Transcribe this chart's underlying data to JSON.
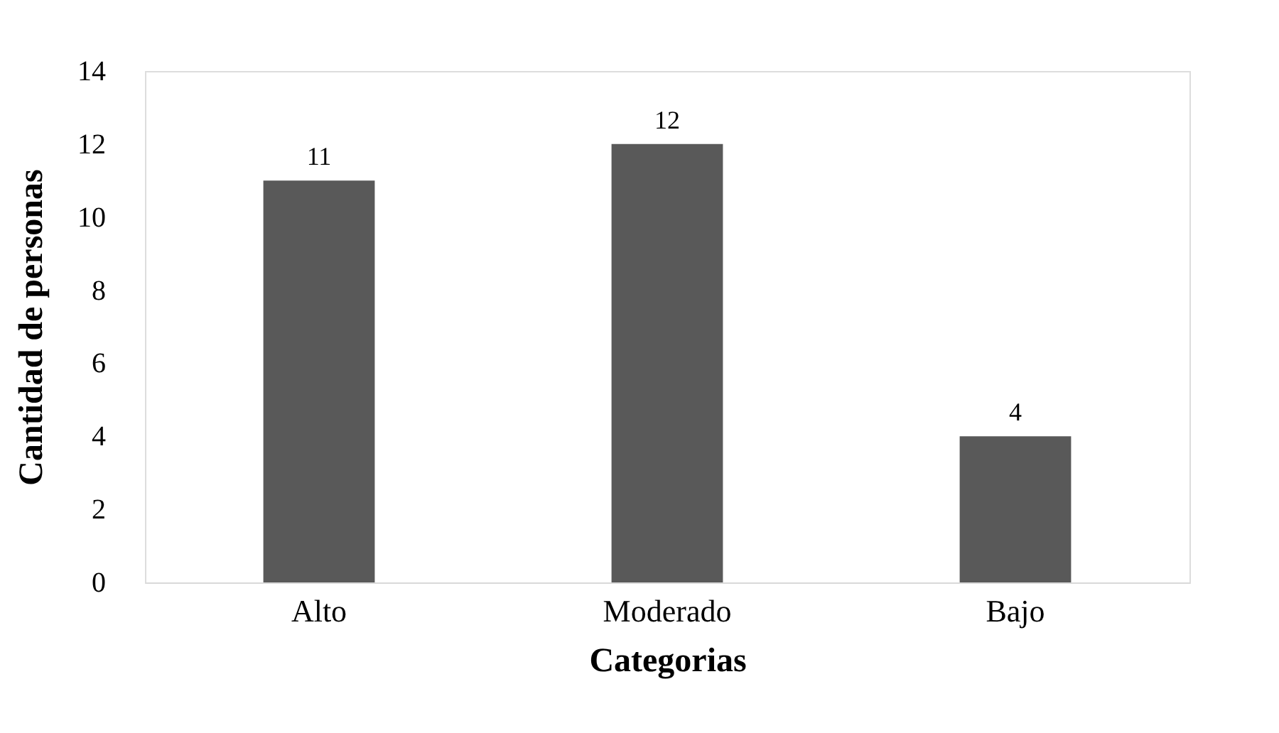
{
  "chart_data": {
    "type": "bar",
    "xlabel": "Categorias",
    "ylabel": "Cantidad de personas",
    "categories": [
      "Alto",
      "Moderado",
      "Bajo"
    ],
    "values": [
      11,
      12,
      4
    ],
    "color": "#595959",
    "ylim": [
      0,
      14
    ],
    "yticks": [
      0,
      2,
      4,
      6,
      8,
      10,
      12,
      14
    ],
    "grid": false,
    "data_labels": true
  }
}
